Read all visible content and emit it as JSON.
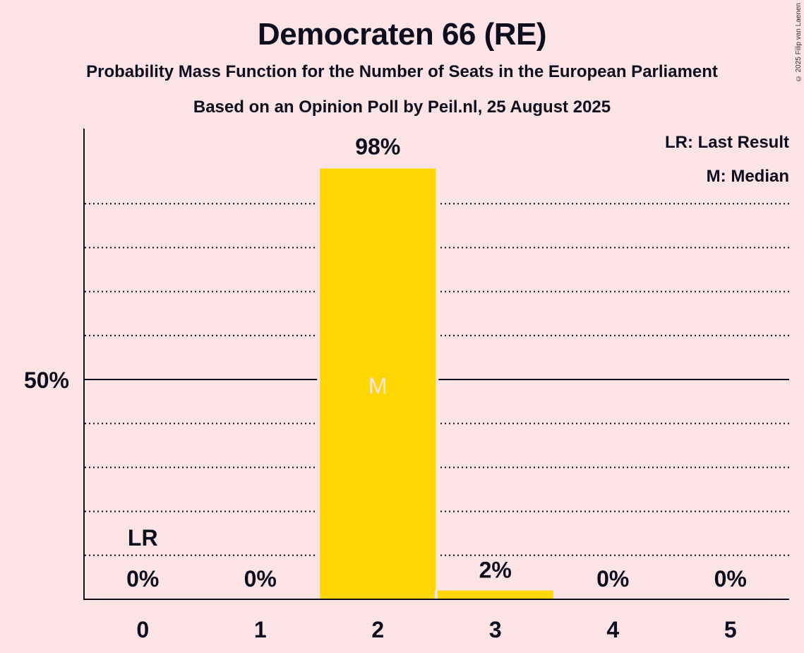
{
  "header": {
    "title": "Democraten 66 (RE)",
    "subtitle": "Probability Mass Function for the Number of Seats in the European Parliament",
    "subtitle2": "Based on an Opinion Poll by Peil.nl, 25 August 2025",
    "copyright": "© 2025 Filip van Laenen"
  },
  "legend": {
    "lr": "LR: Last Result",
    "m": "M: Median"
  },
  "colors": {
    "bar": "#FFD700",
    "background": "#fce4e6",
    "text": "#0d0d1e",
    "median_marker": "#fce4e6"
  },
  "chart_data": {
    "type": "bar",
    "title": "Democraten 66 (RE)",
    "xlabel": "",
    "ylabel": "",
    "categories": [
      "0",
      "1",
      "2",
      "3",
      "4",
      "5"
    ],
    "values": [
      0,
      0,
      98,
      2,
      0,
      0
    ],
    "data_labels": [
      "0%",
      "0%",
      "98%",
      "2%",
      "0%",
      "0%"
    ],
    "ylim": [
      0,
      100
    ],
    "y_ticks": [
      {
        "value": 50,
        "label": "50%"
      }
    ],
    "gridlines_dotted": [
      10,
      20,
      30,
      40,
      60,
      70,
      80,
      90
    ],
    "gridline_solid": 50,
    "last_result": {
      "category": "0",
      "label": "LR"
    },
    "median": {
      "category": "2",
      "label": "M"
    },
    "legend_position": "top-right"
  }
}
